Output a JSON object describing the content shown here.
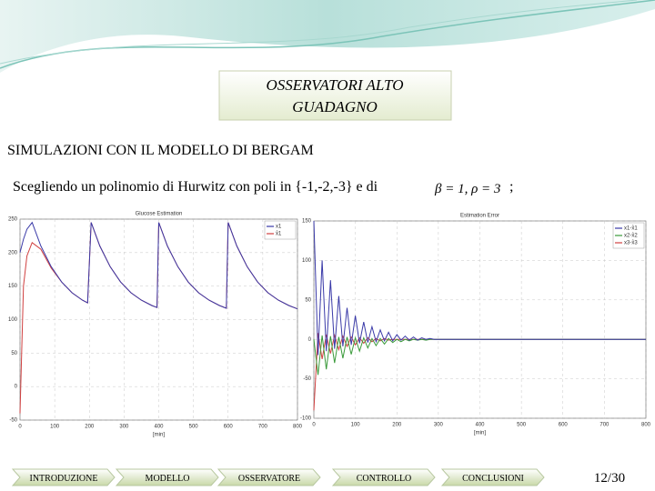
{
  "header": {
    "title_lines": [
      "OSSERVATORI ALTO",
      "GUADAGNO"
    ]
  },
  "subtitle": "SIMULAZIONI CON IL MODELLO DI BERGAM",
  "text": {
    "sentence": "Scegliendo un polinomio di Hurwitz con poli in {-1,-2,-3} e di",
    "formula": "β = 1, ρ = 3",
    "end": ";"
  },
  "chart_data": [
    {
      "type": "line",
      "title": "Glucose Estimation",
      "x_label": "[min]",
      "x": [
        0,
        10,
        20,
        35,
        60,
        90,
        120,
        150,
        180,
        195,
        205,
        230,
        260,
        290,
        320,
        350,
        380,
        395,
        400,
        425,
        455,
        485,
        515,
        545,
        575,
        595,
        600,
        625,
        655,
        685,
        715,
        745,
        775,
        800
      ],
      "series": [
        {
          "name": "x1",
          "color": "#3a3aa8",
          "values": [
            200,
            220,
            235,
            245,
            210,
            179,
            156,
            140,
            129,
            125,
            245,
            210,
            179,
            156,
            140,
            129,
            121,
            118,
            245,
            210,
            179,
            156,
            140,
            129,
            121,
            117,
            245,
            210,
            179,
            156,
            140,
            129,
            121,
            116
          ]
        },
        {
          "name": "x̂1",
          "color": "#d04040",
          "values": [
            -40,
            150,
            195,
            215,
            205,
            177,
            156,
            140,
            129,
            125,
            245,
            210,
            179,
            156,
            140,
            129,
            121,
            118,
            245,
            210,
            179,
            156,
            140,
            129,
            121,
            117,
            245,
            210,
            179,
            156,
            140,
            129,
            121,
            116
          ]
        }
      ],
      "xlim": [
        0,
        800
      ],
      "xticks": [
        0,
        100,
        200,
        300,
        400,
        500,
        600,
        700,
        800
      ],
      "ylim": [
        -50,
        250
      ],
      "yticks": [
        -50,
        0,
        50,
        100,
        150,
        200,
        250
      ],
      "grid": true
    },
    {
      "type": "line",
      "title": "Estimation Error",
      "x_label": "[min]",
      "x": [
        0,
        10,
        20,
        30,
        40,
        50,
        60,
        70,
        80,
        90,
        100,
        110,
        120,
        130,
        140,
        150,
        160,
        170,
        180,
        190,
        200,
        210,
        220,
        230,
        240,
        250,
        260,
        270,
        280,
        290,
        300,
        400,
        500,
        600,
        700,
        800
      ],
      "series": [
        {
          "name": "x1-x̂1",
          "color": "#3a3aa8",
          "values": [
            150,
            -20,
            100,
            -15,
            75,
            -12,
            55,
            -9,
            40,
            -7,
            30,
            -5,
            22,
            -4,
            16,
            -3,
            12,
            -2,
            9,
            -2,
            6,
            -1,
            4,
            -1,
            3,
            -1,
            2,
            0,
            1,
            0,
            0,
            0,
            0,
            0,
            0,
            0
          ]
        },
        {
          "name": "x2-x̂2",
          "color": "#3a9a3a",
          "values": [
            0,
            -45,
            5,
            -38,
            4,
            -30,
            3,
            -24,
            3,
            -19,
            2,
            -15,
            2,
            -11,
            1,
            -8,
            1,
            -6,
            1,
            -4,
            0,
            -3,
            0,
            -2,
            0,
            -1,
            0,
            -1,
            0,
            0,
            0,
            0,
            0,
            0,
            0,
            0
          ]
        },
        {
          "name": "x3-x̂3",
          "color": "#d04040",
          "values": [
            -90,
            8,
            -25,
            6,
            -18,
            5,
            -13,
            4,
            -9,
            3,
            -7,
            2,
            -5,
            2,
            -3,
            1,
            -2,
            1,
            -1,
            0,
            0,
            0,
            0,
            0,
            0,
            0,
            0,
            0,
            0,
            0,
            0,
            0,
            0,
            0,
            0,
            0
          ]
        }
      ],
      "xlim": [
        0,
        800
      ],
      "xticks": [
        0,
        100,
        200,
        300,
        400,
        500,
        600,
        700,
        800
      ],
      "ylim": [
        -100,
        150
      ],
      "yticks": [
        -100,
        -50,
        0,
        50,
        100,
        150
      ],
      "grid": true
    }
  ],
  "nav": [
    "INTRODUZIONE",
    "MODELLO",
    "OSSERVATORE",
    "CONTROLLO",
    "CONCLUSIONI"
  ],
  "page_number": "12/30"
}
